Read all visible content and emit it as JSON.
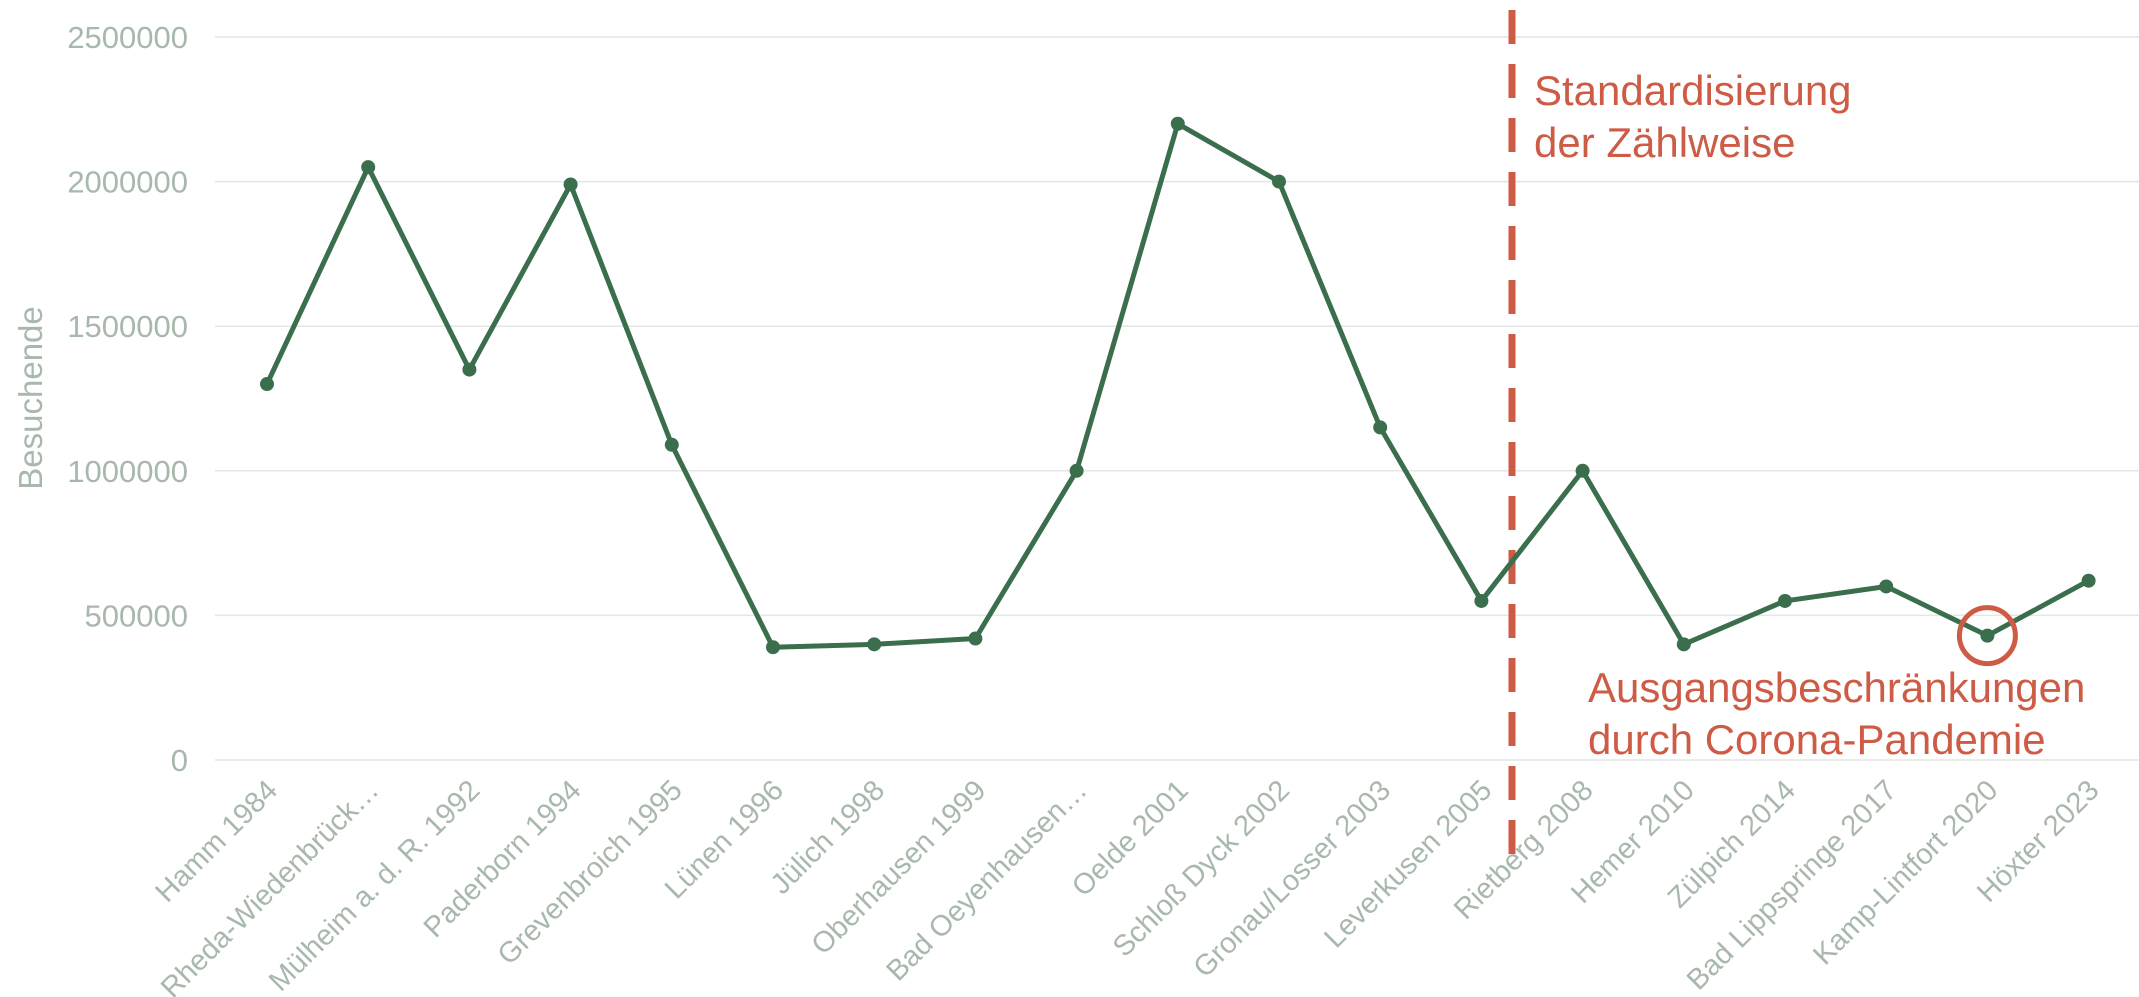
{
  "chart_data": {
    "type": "line",
    "title": "",
    "xlabel": "",
    "ylabel": "Besuchende",
    "ylim": [
      0,
      2500000
    ],
    "yticks": [
      "0",
      "500000",
      "1000000",
      "1500000",
      "2000000",
      "2500000"
    ],
    "grid": true,
    "categories": [
      "Hamm 1984",
      "Rheda-Wiedenbrück…",
      "Mülheim a. d. R. 1992",
      "Paderborn 1994",
      "Grevenbroich 1995",
      "Lünen 1996",
      "Jülich 1998",
      "Oberhausen 1999",
      "Bad Oeyenhausen…",
      "Oelde 2001",
      "Schloß Dyck 2002",
      "Gronau/Losser 2003",
      "Leverkusen 2005",
      "Rietberg 2008",
      "Hemer 2010",
      "Zülpich 2014",
      "Bad Lippspringe 2017",
      "Kamp-Lintfort 2020",
      "Höxter 2023"
    ],
    "series": [
      {
        "values": [
          1300000,
          2050000,
          1350000,
          1990000,
          1090000,
          390000,
          400000,
          420000,
          1000000,
          2200000,
          2000000,
          1150000,
          550000,
          1000000,
          400000,
          550000,
          600000,
          430000,
          620000
        ]
      }
    ],
    "colors": {
      "line": "#3a6e4c",
      "annotation": "#cd5b45",
      "axis_text": "#a8b8ac",
      "grid": "#e3e6e4"
    },
    "annotations": [
      {
        "kind": "vertical-dashed-line",
        "between": [
          "Leverkusen 2005",
          "Rietberg 2008"
        ],
        "lines": [
          "Standardisierung",
          "der Zählweise"
        ]
      },
      {
        "kind": "circle-marker",
        "category": "Kamp-Lintfort 2020",
        "lines": [
          "Ausgangsbeschränkungen",
          "durch Corona-Pandemie"
        ]
      }
    ]
  }
}
